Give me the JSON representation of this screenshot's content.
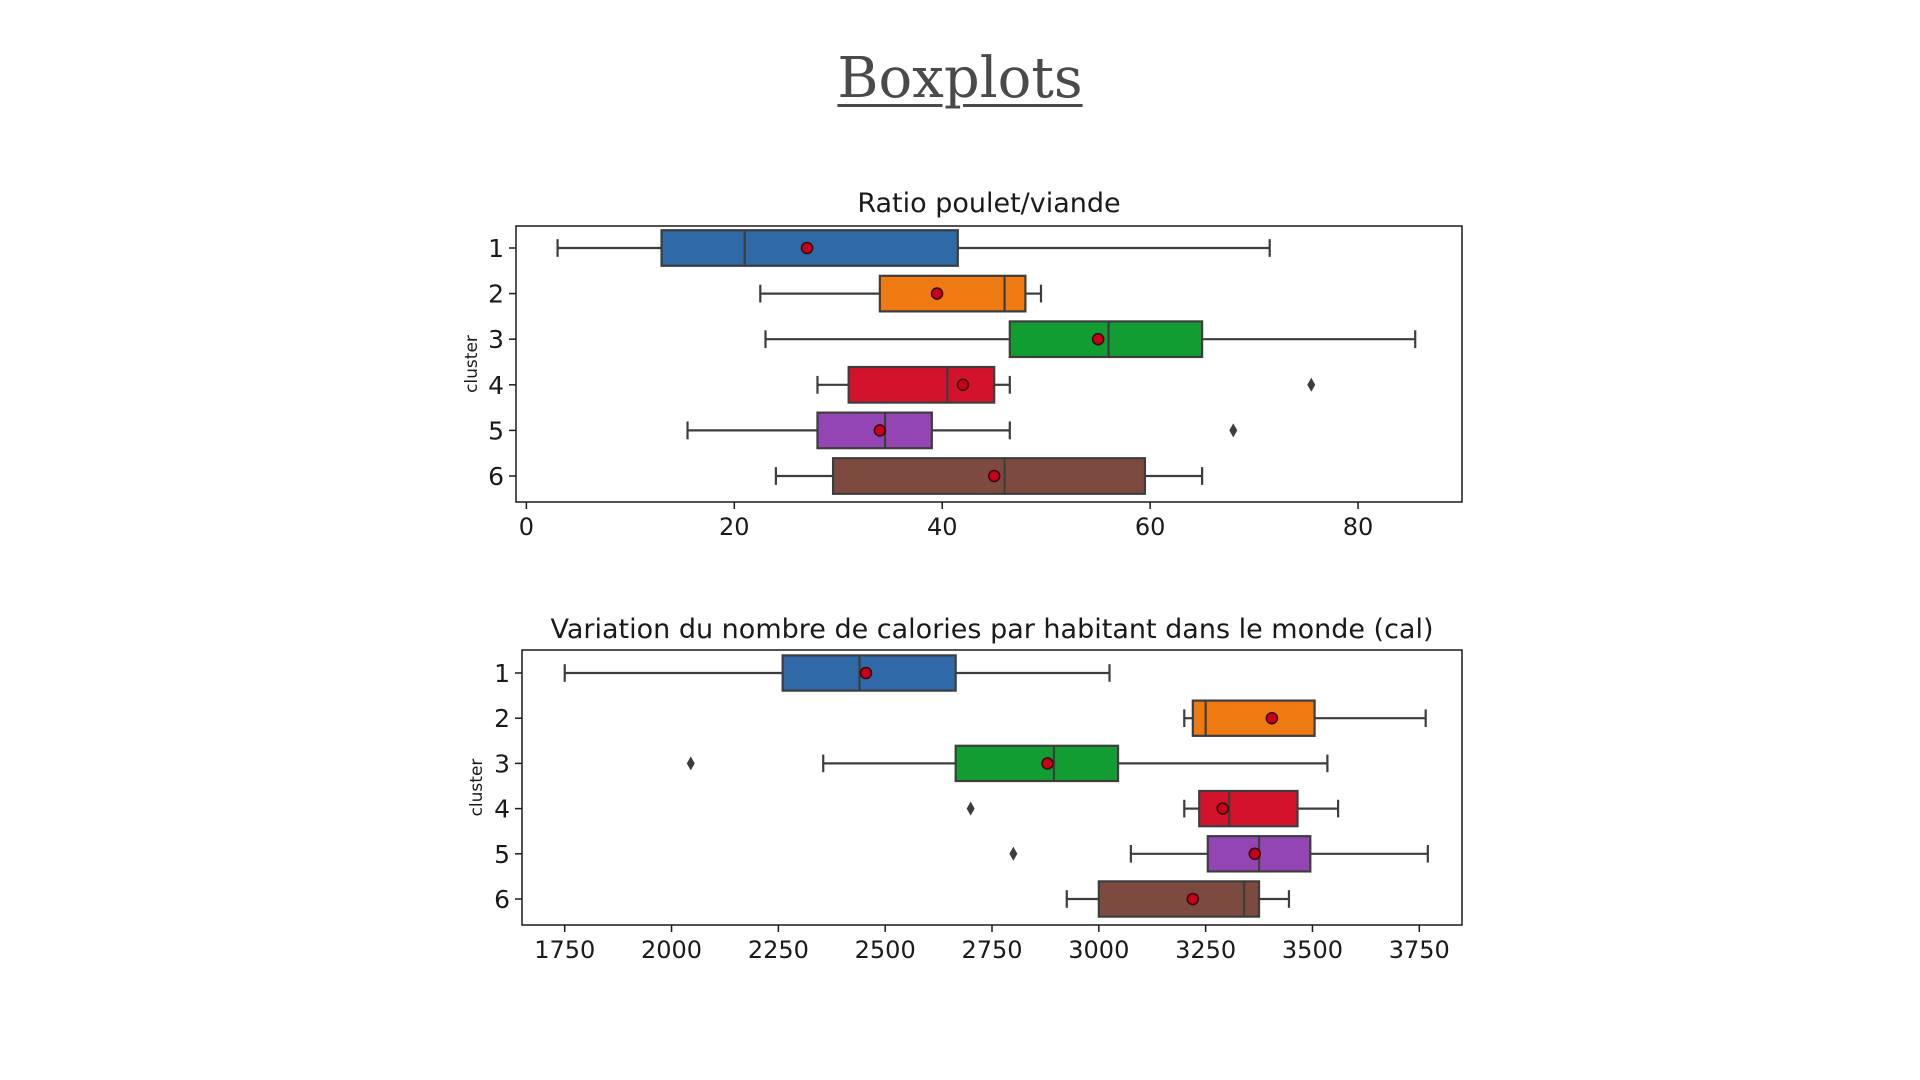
{
  "slide": {
    "title": "Boxplots"
  },
  "chart_data": [
    {
      "type": "boxplot",
      "orientation": "horizontal",
      "title": "Ratio poulet/viande",
      "ylabel": "cluster",
      "xlabel": "",
      "xlim": [
        -1,
        90
      ],
      "xticks": [
        0,
        20,
        40,
        60,
        80
      ],
      "grid": false,
      "categories": [
        "1",
        "2",
        "3",
        "4",
        "5",
        "6"
      ],
      "series": [
        {
          "category": "1",
          "color": "#2f69a7",
          "whisker_low": 3,
          "q1": 13,
          "median": 21,
          "q3": 41.5,
          "whisker_high": 71.5,
          "mean": 27,
          "outliers": []
        },
        {
          "category": "2",
          "color": "#f07a12",
          "whisker_low": 22.5,
          "q1": 34,
          "median": 46,
          "q3": 48,
          "whisker_high": 49.5,
          "mean": 39.5,
          "outliers": []
        },
        {
          "category": "3",
          "color": "#129d33",
          "whisker_low": 23,
          "q1": 46.5,
          "median": 56,
          "q3": 65,
          "whisker_high": 85.5,
          "mean": 55,
          "outliers": []
        },
        {
          "category": "4",
          "color": "#d3122b",
          "whisker_low": 28,
          "q1": 31,
          "median": 40.5,
          "q3": 45,
          "whisker_high": 46.5,
          "mean": 42,
          "outliers": [
            75.5
          ]
        },
        {
          "category": "5",
          "color": "#9346b3",
          "whisker_low": 15.5,
          "q1": 28,
          "median": 34.5,
          "q3": 39,
          "whisker_high": 46.5,
          "mean": 34,
          "outliers": [
            68
          ]
        },
        {
          "category": "6",
          "color": "#7d4a40",
          "whisker_low": 24,
          "q1": 29.5,
          "median": 46,
          "q3": 59.5,
          "whisker_high": 65,
          "mean": 45,
          "outliers": []
        }
      ]
    },
    {
      "type": "boxplot",
      "orientation": "horizontal",
      "title": "Variation du nombre de calories par habitant dans le monde (cal)",
      "ylabel": "cluster",
      "xlabel": "",
      "xlim": [
        1650,
        3850
      ],
      "xticks": [
        1750,
        2000,
        2250,
        2500,
        2750,
        3000,
        3250,
        3500,
        3750
      ],
      "grid": false,
      "categories": [
        "1",
        "2",
        "3",
        "4",
        "5",
        "6"
      ],
      "series": [
        {
          "category": "1",
          "color": "#2f69a7",
          "whisker_low": 1750,
          "q1": 2260,
          "median": 2440,
          "q3": 2665,
          "whisker_high": 3025,
          "mean": 2455,
          "outliers": []
        },
        {
          "category": "2",
          "color": "#f07a12",
          "whisker_low": 3200,
          "q1": 3220,
          "median": 3250,
          "q3": 3505,
          "whisker_high": 3765,
          "mean": 3405,
          "outliers": []
        },
        {
          "category": "3",
          "color": "#129d33",
          "whisker_low": 2355,
          "q1": 2665,
          "median": 2895,
          "q3": 3045,
          "whisker_high": 3535,
          "mean": 2880,
          "outliers": [
            2045
          ]
        },
        {
          "category": "4",
          "color": "#d3122b",
          "whisker_low": 3200,
          "q1": 3235,
          "median": 3305,
          "q3": 3465,
          "whisker_high": 3560,
          "mean": 3290,
          "outliers": [
            2700
          ]
        },
        {
          "category": "5",
          "color": "#9346b3",
          "whisker_low": 3075,
          "q1": 3255,
          "median": 3375,
          "q3": 3495,
          "whisker_high": 3770,
          "mean": 3365,
          "outliers": [
            2800
          ]
        },
        {
          "category": "6",
          "color": "#7d4a40",
          "whisker_low": 2925,
          "q1": 3000,
          "median": 3340,
          "q3": 3375,
          "whisker_high": 3445,
          "mean": 3220,
          "outliers": []
        }
      ]
    }
  ]
}
